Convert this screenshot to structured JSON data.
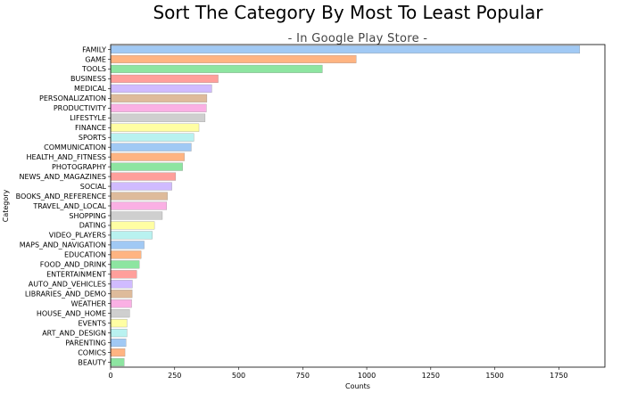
{
  "chart_data": {
    "type": "bar",
    "orientation": "horizontal",
    "title": "Sort The Category By Most To Least Popular",
    "subtitle": "- In Google Play Store -",
    "xlabel": "Counts",
    "ylabel": "Category",
    "xlim": [
      0,
      1930
    ],
    "xticks": [
      0,
      250,
      500,
      750,
      1000,
      1250,
      1500,
      1750
    ],
    "grid": false,
    "categories": [
      "FAMILY",
      "GAME",
      "TOOLS",
      "BUSINESS",
      "MEDICAL",
      "PERSONALIZATION",
      "PRODUCTIVITY",
      "LIFESTYLE",
      "FINANCE",
      "SPORTS",
      "COMMUNICATION",
      "HEALTH_AND_FITNESS",
      "PHOTOGRAPHY",
      "NEWS_AND_MAGAZINES",
      "SOCIAL",
      "BOOKS_AND_REFERENCE",
      "TRAVEL_AND_LOCAL",
      "SHOPPING",
      "DATING",
      "VIDEO_PLAYERS",
      "MAPS_AND_NAVIGATION",
      "EDUCATION",
      "FOOD_AND_DRINK",
      "ENTERTAINMENT",
      "AUTO_AND_VEHICLES",
      "LIBRARIES_AND_DEMO",
      "WEATHER",
      "HOUSE_AND_HOME",
      "EVENTS",
      "ART_AND_DESIGN",
      "PARENTING",
      "COMICS",
      "BEAUTY"
    ],
    "values": [
      1832,
      959,
      827,
      420,
      395,
      376,
      374,
      369,
      345,
      325,
      315,
      288,
      281,
      254,
      239,
      222,
      219,
      202,
      171,
      163,
      131,
      119,
      112,
      102,
      85,
      84,
      82,
      74,
      64,
      64,
      60,
      56,
      53
    ],
    "colors": [
      "#a1c9f4",
      "#ffb482",
      "#8de5a1",
      "#ff9f9b",
      "#d0bbff",
      "#debb9b",
      "#fab0e4",
      "#cfcfcf",
      "#fffea3",
      "#b9f2f0"
    ]
  }
}
